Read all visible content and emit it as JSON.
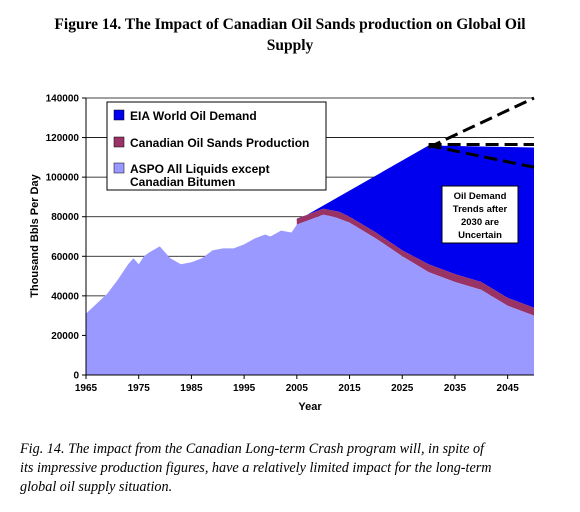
{
  "figure": {
    "title_line1": "Figure 14. The Impact of Canadian Oil Sands production on Global Oil",
    "title_line2": "Supply"
  },
  "caption": {
    "line1": "Fig. 14. The impact from the Canadian Long-term Crash program will, in spite of",
    "line2": "its impressive production figures, have a relatively limited impact for the long-term",
    "line3": "global oil supply situation."
  },
  "colors": {
    "demand": "#0000ee",
    "oil_sands": "#993366",
    "aspo": "#9999ff"
  },
  "chart_data": {
    "type": "area",
    "xlabel": "Year",
    "ylabel": "Thousand Bbls Per Day",
    "xlim": [
      1965,
      2050
    ],
    "ylim": [
      0,
      140000
    ],
    "x_ticks": [
      1965,
      1975,
      1985,
      1995,
      2005,
      2015,
      2025,
      2035,
      2045
    ],
    "y_ticks": [
      0,
      20000,
      40000,
      60000,
      80000,
      100000,
      120000,
      140000
    ],
    "grid": "horizontal",
    "legend_position": "top-left",
    "series": [
      {
        "name": "EIA World Oil Demand",
        "x": [
          2005,
          2030,
          2050
        ],
        "y": [
          78000,
          116000,
          115000
        ]
      },
      {
        "name": "Canadian Oil Sands Production",
        "x": [
          2005,
          2008,
          2010,
          2013,
          2015,
          2020,
          2025,
          2030,
          2035,
          2040,
          2045,
          2050
        ],
        "y": [
          79000,
          82000,
          84000,
          82500,
          80000,
          72000,
          63000,
          56000,
          51000,
          47000,
          39000,
          34000
        ]
      },
      {
        "name": "ASPO All Liquids except Canadian Bitumen",
        "x": [
          1965,
          1967,
          1969,
          1971,
          1973,
          1974,
          1975,
          1976,
          1977,
          1979,
          1981,
          1983,
          1985,
          1987,
          1989,
          1991,
          1993,
          1995,
          1997,
          1999,
          2000,
          2002,
          2004,
          2005,
          2006,
          2008,
          2010,
          2012,
          2015,
          2020,
          2025,
          2030,
          2035,
          2040,
          2045,
          2050
        ],
        "y": [
          31000,
          36000,
          41000,
          48000,
          56000,
          59000,
          56000,
          60000,
          62000,
          65000,
          59000,
          56000,
          57000,
          59000,
          63000,
          64000,
          64000,
          66000,
          69000,
          71000,
          70000,
          73000,
          72000,
          76000,
          77000,
          79000,
          81000,
          80000,
          77000,
          69000,
          60000,
          52000,
          47000,
          43000,
          35000,
          30000
        ]
      }
    ],
    "projection_lines": [
      {
        "style": "dashed",
        "x": [
          2030,
          2050
        ],
        "y": [
          115000,
          140000
        ]
      },
      {
        "style": "dashed",
        "x": [
          2030,
          2050
        ],
        "y": [
          116500,
          116500
        ]
      },
      {
        "style": "dashed",
        "x": [
          2030,
          2050
        ],
        "y": [
          116000,
          105000
        ]
      }
    ],
    "annotation": {
      "lines": [
        "Oil Demand",
        "Trends after",
        "2030 are",
        "Uncertain"
      ]
    }
  }
}
